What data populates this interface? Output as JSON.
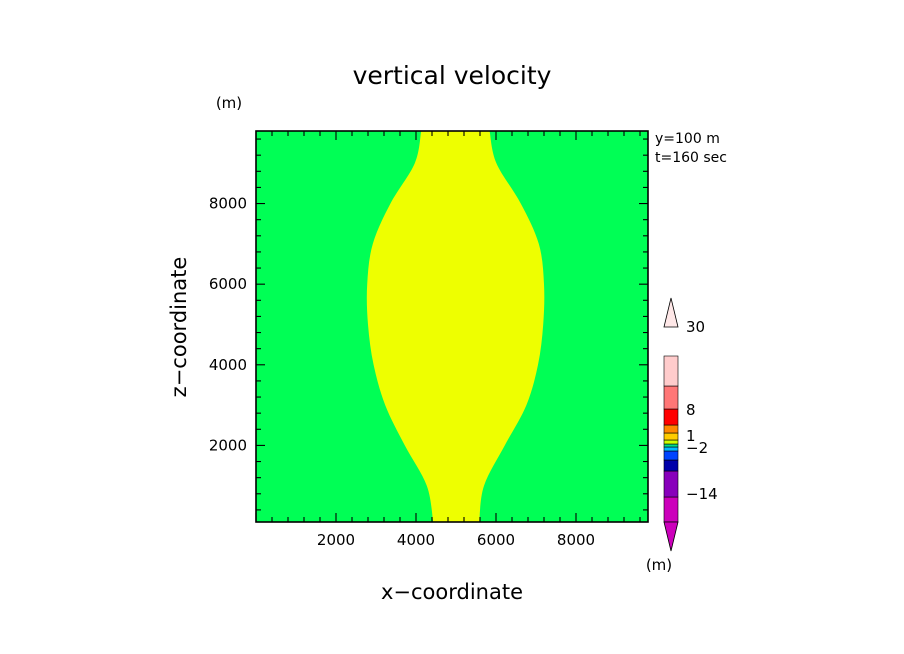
{
  "chart_data": {
    "type": "heatmap",
    "title": "vertical velocity",
    "xlabel": "x−coordinate",
    "ylabel": "z−coordinate",
    "y_unit": "(m)",
    "colorbar_unit": "(m)",
    "annotations": [
      "y=100 m",
      "t=160 sec"
    ],
    "xlim": [
      0,
      9800
    ],
    "ylim": [
      100,
      9800
    ],
    "x_ticks": [
      2000,
      4000,
      6000,
      8000
    ],
    "x_tick_labels": [
      "2000",
      "4000",
      "6000",
      "8000"
    ],
    "y_ticks": [
      2000,
      4000,
      6000,
      8000
    ],
    "y_tick_labels": [
      "2000",
      "4000",
      "6000",
      "8000"
    ],
    "grid": false,
    "background_color": "#00ff55",
    "region": {
      "color": "#eeff00",
      "profile_z": [
        100,
        1000,
        2000,
        3000,
        4000,
        5000,
        6000,
        7000,
        8000,
        9000,
        9800
      ],
      "left_x": [
        4430,
        4270,
        3720,
        3230,
        2940,
        2800,
        2780,
        2920,
        3360,
        3970,
        4130
      ],
      "right_x": [
        5580,
        5700,
        6220,
        6760,
        7050,
        7180,
        7200,
        7070,
        6620,
        6010,
        5840
      ]
    },
    "colorbar": {
      "colors": [
        "#cc00bb",
        "#8800bb",
        "#0000aa",
        "#0044ff",
        "#00bbff",
        "#00dd88",
        "#ccff00",
        "#ffcc00",
        "#ff8800",
        "#ff0000",
        "#ff7777",
        "#ffcccc"
      ],
      "top_arrow_color": "#ffe8e8",
      "bottom_arrow_color": "#cc00bb",
      "labels": [
        "30",
        "8",
        "1",
        "−2",
        "−14"
      ]
    }
  }
}
